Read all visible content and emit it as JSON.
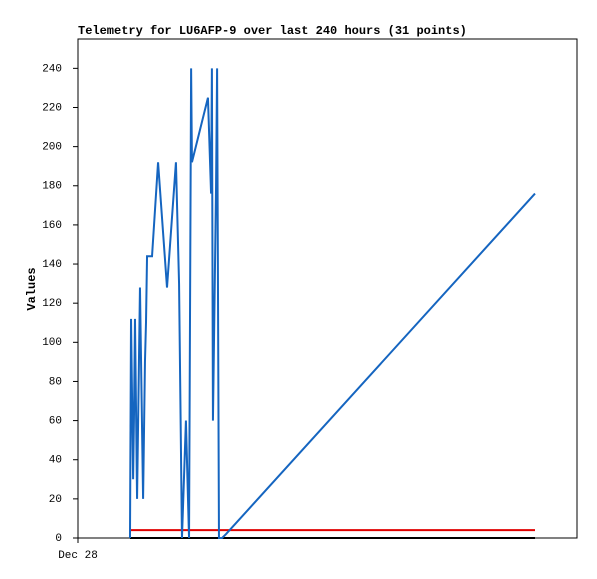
{
  "chart_data": {
    "type": "line",
    "title": "Telemetry for LU6AFP-9 over last 240 hours (31 points)",
    "y_label": "Values",
    "x": [
      25.0,
      25.5,
      26.5,
      26.9,
      27.4,
      28.4,
      29.8,
      31.3,
      32.2,
      32.7,
      33.2,
      35.6,
      38.5,
      42.8,
      47.1,
      48.6,
      50.0,
      51.9,
      53.4,
      54.4,
      54.8,
      62.5,
      64.0,
      64.4,
      64.9,
      66.4,
      66.9,
      67.8,
      69.3,
      71.2,
      219.8
    ],
    "series": [
      {
        "color": "#1565c0",
        "values": [
          0,
          112,
          30,
          60,
          112,
          20,
          128,
          20,
          90,
          110,
          144,
          144,
          192,
          128,
          192,
          130,
          0,
          60,
          0,
          240,
          192,
          225,
          176,
          240,
          60,
          180,
          240,
          0,
          0,
          2,
          176
        ]
      },
      {
        "color": "#e00000",
        "values": [
          4,
          4,
          4,
          4,
          4,
          4,
          4,
          4,
          4,
          4,
          4,
          4,
          4,
          4,
          4,
          4,
          4,
          4,
          4,
          4,
          4,
          4,
          4,
          4,
          4,
          4,
          4,
          4,
          4,
          4,
          4
        ]
      },
      {
        "color": "#000000",
        "values": [
          0,
          0,
          0,
          0,
          0,
          0,
          0,
          0,
          0,
          0,
          0,
          0,
          0,
          0,
          0,
          0,
          0,
          0,
          0,
          0,
          0,
          0,
          0,
          0,
          0,
          0,
          0,
          0,
          0,
          0,
          0
        ]
      }
    ],
    "xlim": [
      0,
      240
    ],
    "xticks": [
      {
        "value": 0,
        "label": "Dec 28"
      }
    ],
    "ylim": [
      0,
      255
    ],
    "yticks": [
      0,
      20,
      40,
      60,
      80,
      100,
      120,
      140,
      160,
      180,
      200,
      220,
      240
    ],
    "grid": false
  }
}
